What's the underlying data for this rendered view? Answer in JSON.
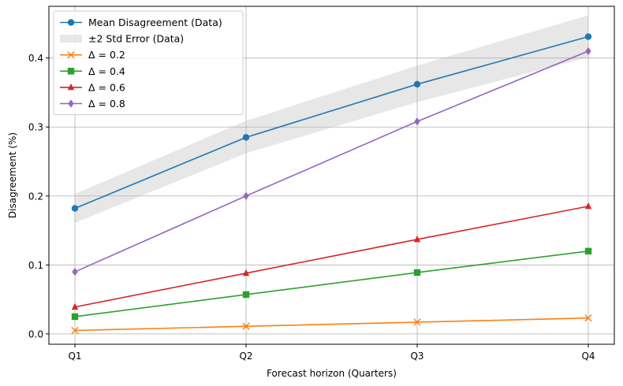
{
  "chart_data": {
    "type": "line",
    "categories": [
      "Q1",
      "Q2",
      "Q3",
      "Q4"
    ],
    "xlabel": "Forecast horizon (Quarters)",
    "ylabel": "Disagreement (%)",
    "ylim": [
      -0.015,
      0.475
    ],
    "yticks": [
      "0.0",
      "0.1",
      "0.2",
      "0.3",
      "0.4"
    ],
    "grid": true,
    "legend_position": "top-left",
    "band": {
      "name": "±2 Std Error (Data)",
      "lower": [
        0.161,
        0.262,
        0.336,
        0.401
      ],
      "upper": [
        0.203,
        0.309,
        0.389,
        0.462
      ],
      "color": "#bbbbbb"
    },
    "series": [
      {
        "name": "Mean Disagreement (Data)",
        "values": [
          0.182,
          0.285,
          0.362,
          0.431
        ],
        "color": "#1f77b4",
        "marker": "circle"
      },
      {
        "name": "Δ = 0.2",
        "values": [
          0.005,
          0.011,
          0.017,
          0.023
        ],
        "color": "#ff7f0e",
        "marker": "x"
      },
      {
        "name": "Δ = 0.4",
        "values": [
          0.025,
          0.057,
          0.089,
          0.12
        ],
        "color": "#2ca02c",
        "marker": "square"
      },
      {
        "name": "Δ = 0.6",
        "values": [
          0.039,
          0.088,
          0.137,
          0.185
        ],
        "color": "#d62728",
        "marker": "triangle"
      },
      {
        "name": "Δ = 0.8",
        "values": [
          0.09,
          0.2,
          0.308,
          0.41
        ],
        "color": "#9467bd",
        "marker": "diamond"
      }
    ],
    "legend_order": [
      "Mean Disagreement (Data)",
      "±2 Std Error (Data)",
      "Δ = 0.2",
      "Δ = 0.4",
      "Δ = 0.6",
      "Δ = 0.8"
    ]
  }
}
